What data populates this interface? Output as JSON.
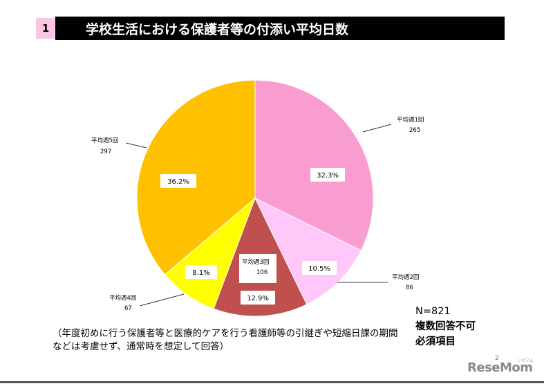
{
  "header": {
    "slide_number": "1",
    "title": "学校生活における保護者等の付添い平均日数"
  },
  "chart_data": {
    "type": "pie",
    "title": "学校生活における保護者等の付添い平均日数",
    "start_angle_deg": 0,
    "direction": "clockwise",
    "slices": [
      {
        "label": "平均週1回",
        "count": "265",
        "value": 32.3,
        "percent_label": "32.3%",
        "color": "#f99ccf"
      },
      {
        "label": "平均週2回",
        "count": "86",
        "value": 10.5,
        "percent_label": "10.5%",
        "color": "#ffc8f8"
      },
      {
        "label": "平均週3回",
        "count": "106",
        "value": 12.9,
        "percent_label": "12.9%",
        "color": "#c0504d"
      },
      {
        "label": "平均週4回",
        "count": "67",
        "value": 8.1,
        "percent_label": "8.1%",
        "color": "#ffff00"
      },
      {
        "label": "平均週5回",
        "count": "297",
        "value": 36.2,
        "percent_label": "36.2%",
        "color": "#ffc000"
      }
    ]
  },
  "info": {
    "n": "N=821",
    "line2": "複数回答不可",
    "line3": "必須項目"
  },
  "note": "（年度初めに行う保護者等と医療的ケアを行う看護師等の引継ぎや短縮日課の期間などは考慮せず、通常時を想定して回答）",
  "footer": {
    "page_number": "2",
    "logo": "ReseMom",
    "logo_kana": "リセマム"
  }
}
